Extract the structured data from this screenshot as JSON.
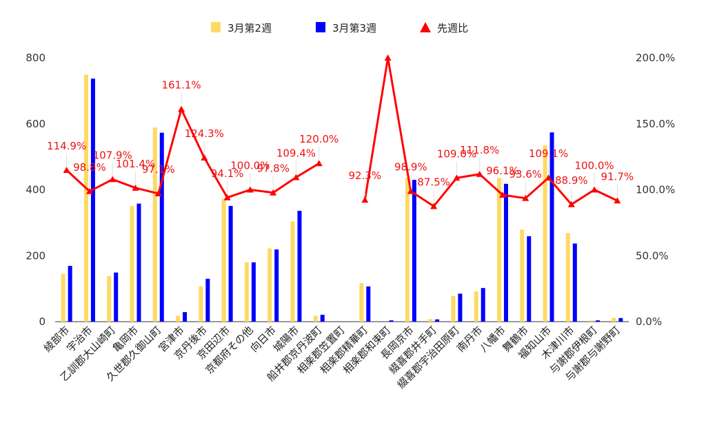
{
  "chart_data": {
    "type": "bar",
    "categories": [
      "綾部市",
      "宇治市",
      "乙訓郡大山崎町",
      "亀岡市",
      "久世郡久御山町",
      "宮津市",
      "京丹後市",
      "京田辺市",
      "京都府その他",
      "向日市",
      "城陽市",
      "船井郡京丹波町",
      "相楽郡笠置町",
      "相楽郡精華町",
      "相楽郡和束町",
      "長岡京市",
      "綴喜郡井手町",
      "綴喜郡宇治田原町",
      "南丹市",
      "八幡市",
      "舞鶴市",
      "福知山市",
      "木津川市",
      "与謝郡伊根町",
      "与謝郡与謝野町"
    ],
    "series": [
      {
        "name": "3月第2週",
        "axis": "left",
        "color": "#FFD966",
        "values": [
          145,
          749,
          138,
          351,
          589,
          18,
          107,
          373,
          180,
          222,
          304,
          18,
          0,
          117,
          0,
          437,
          8,
          78,
          92,
          436,
          279,
          535,
          269,
          4,
          12
        ]
      },
      {
        "name": "3月第3週",
        "axis": "left",
        "color": "#0000FF",
        "values": [
          169,
          737,
          149,
          358,
          573,
          29,
          130,
          351,
          180,
          219,
          336,
          21,
          0,
          107,
          4,
          430,
          7,
          85,
          102,
          418,
          259,
          574,
          237,
          4,
          11
        ]
      },
      {
        "name": "先週比",
        "axis": "right",
        "type": "line",
        "marker": "triangle",
        "color": "#FF0000",
        "values": [
          114.9,
          98.8,
          107.9,
          101.4,
          97.1,
          161.1,
          124.3,
          94.1,
          100.0,
          97.8,
          109.4,
          120.0,
          null,
          92.3,
          200.0,
          98.9,
          87.5,
          109.0,
          111.8,
          96.1,
          93.6,
          109.1,
          88.9,
          100.0,
          91.7
        ],
        "labels": [
          "114.9%",
          "98.8%",
          "107.9%",
          "101.4%",
          "97.1%",
          "161.1%",
          "124.3%",
          "94.1%",
          "100.0%",
          "97.8%",
          "109.4%",
          "120.0%",
          "",
          "92.3%",
          "",
          "98.9%",
          "87.5%",
          "109.0%",
          "111.8%",
          "96.1%",
          "93.6%",
          "109.1%",
          "88.9%",
          "100.0%",
          "91.7%"
        ]
      }
    ],
    "y_left": {
      "ylim": [
        0,
        800
      ],
      "ticks": [
        "0",
        "200",
        "400",
        "600",
        "800"
      ]
    },
    "y_right": {
      "ylim": [
        0,
        200
      ],
      "ticks": [
        "0.0%",
        "50.0%",
        "100.0%",
        "150.0%",
        "200.0%"
      ]
    },
    "legend": {
      "position": "top",
      "items": [
        "3月第2週",
        "3月第3週",
        "先週比"
      ]
    },
    "grid": false
  }
}
